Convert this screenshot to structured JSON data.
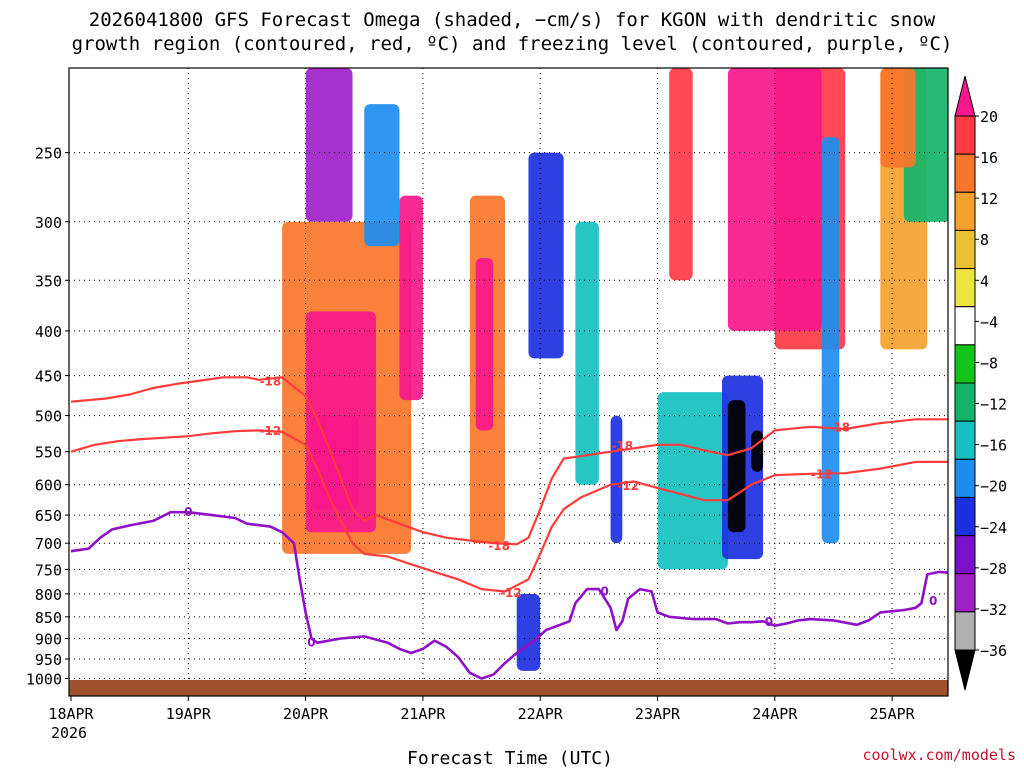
{
  "title": {
    "line1": "2026041800 GFS Forecast Omega (shaded, −cm/s) for KGON with dendritic snow",
    "line2": "growth region (contoured, red, ºC) and freezing level (contoured, purple, ºC)"
  },
  "credit": "coolwx.com/models",
  "chart_data": {
    "type": "heatmap",
    "title": "2026041800 GFS Forecast Omega (shaded, −cm/s) for KGON with dendritic snow growth region (contoured, red, ºC) and freezing level (contoured, purple, ºC)",
    "xlabel": "Forecast Time (UTC)",
    "ylabel": "",
    "x_ticks": [
      "18APR",
      "19APR",
      "20APR",
      "21APR",
      "22APR",
      "23APR",
      "24APR",
      "25APR"
    ],
    "x_first_sub": "2026",
    "x_range_days": [
      0,
      7.5
    ],
    "y_ticks": [
      250,
      300,
      350,
      400,
      450,
      500,
      550,
      600,
      650,
      700,
      750,
      800,
      850,
      900,
      950,
      1000
    ],
    "y_range_hpa": [
      1020,
      200
    ],
    "y_scale": "log-pressure",
    "grid": true,
    "colorbar": {
      "levels": [
        20,
        16,
        12,
        8,
        4,
        -4,
        -8,
        -12,
        -16,
        -20,
        -24,
        -28,
        -32,
        -36
      ],
      "label_text": [
        "20",
        "16",
        "12",
        "8",
        "4",
        "−4",
        "−8",
        "−12",
        "−16",
        "−20",
        "−24",
        "−28",
        "−32",
        "−36"
      ],
      "colors": [
        "#f7178c",
        "#ff3b46",
        "#f8762a",
        "#f3a12c",
        "#e8c232",
        "#ece440",
        "#ffffff",
        "#10c418",
        "#12b46a",
        "#16c0c0",
        "#1c8ef0",
        "#1c30e0",
        "#7a10c8",
        "#a020c8",
        "#b0b0b0",
        "#000000"
      ]
    },
    "red_contours": [
      {
        "name": "-18",
        "points": [
          [
            0,
            482
          ],
          [
            0.3,
            478
          ],
          [
            0.5,
            473
          ],
          [
            0.7,
            465
          ],
          [
            0.9,
            460
          ],
          [
            1.1,
            456
          ],
          [
            1.3,
            452
          ],
          [
            1.5,
            452
          ],
          [
            1.6,
            455
          ],
          [
            1.8,
            452
          ],
          [
            2.0,
            475
          ],
          [
            2.1,
            505
          ],
          [
            2.2,
            545
          ],
          [
            2.3,
            590
          ],
          [
            2.4,
            640
          ],
          [
            2.5,
            660
          ],
          [
            2.6,
            650
          ],
          [
            2.8,
            665
          ],
          [
            3.0,
            680
          ],
          [
            3.2,
            690
          ],
          [
            3.4,
            695
          ],
          [
            3.6,
            700
          ],
          [
            3.8,
            702
          ],
          [
            3.9,
            690
          ],
          [
            4.0,
            640
          ],
          [
            4.1,
            590
          ],
          [
            4.2,
            560
          ],
          [
            4.4,
            555
          ],
          [
            4.6,
            550
          ],
          [
            4.8,
            545
          ],
          [
            5.0,
            540
          ],
          [
            5.2,
            540
          ],
          [
            5.4,
            548
          ],
          [
            5.6,
            555
          ],
          [
            5.8,
            545
          ],
          [
            6.0,
            520
          ],
          [
            6.3,
            515
          ],
          [
            6.6,
            518
          ],
          [
            6.9,
            510
          ],
          [
            7.2,
            505
          ],
          [
            7.5,
            505
          ]
        ],
        "labels": [
          {
            "text": "-18",
            "at": [
              1.7,
              457
            ]
          },
          {
            "text": "-18",
            "at": [
              3.65,
              705
            ]
          },
          {
            "text": "-18",
            "at": [
              4.7,
              542
            ]
          },
          {
            "text": "-18",
            "at": [
              6.55,
              516
            ]
          }
        ]
      },
      {
        "name": "-12",
        "points": [
          [
            0,
            550
          ],
          [
            0.2,
            540
          ],
          [
            0.4,
            535
          ],
          [
            0.6,
            532
          ],
          [
            0.8,
            530
          ],
          [
            1.0,
            528
          ],
          [
            1.2,
            524
          ],
          [
            1.4,
            521
          ],
          [
            1.6,
            520
          ],
          [
            1.8,
            522
          ],
          [
            2.0,
            540
          ],
          [
            2.1,
            575
          ],
          [
            2.2,
            620
          ],
          [
            2.3,
            660
          ],
          [
            2.4,
            700
          ],
          [
            2.5,
            720
          ],
          [
            2.7,
            725
          ],
          [
            2.9,
            740
          ],
          [
            3.1,
            755
          ],
          [
            3.3,
            770
          ],
          [
            3.5,
            790
          ],
          [
            3.7,
            795
          ],
          [
            3.9,
            770
          ],
          [
            4.0,
            720
          ],
          [
            4.1,
            670
          ],
          [
            4.2,
            640
          ],
          [
            4.35,
            620
          ],
          [
            4.6,
            600
          ],
          [
            4.8,
            595
          ],
          [
            5.0,
            605
          ],
          [
            5.2,
            615
          ],
          [
            5.4,
            625
          ],
          [
            5.6,
            625
          ],
          [
            5.8,
            600
          ],
          [
            6.0,
            585
          ],
          [
            6.3,
            583
          ],
          [
            6.6,
            582
          ],
          [
            6.9,
            575
          ],
          [
            7.2,
            565
          ],
          [
            7.5,
            565
          ]
        ],
        "labels": [
          {
            "text": "-12",
            "at": [
              1.7,
              521
            ]
          },
          {
            "text": "-12",
            "at": [
              3.75,
              798
            ]
          },
          {
            "text": "-12",
            "at": [
              4.75,
              602
            ]
          },
          {
            "text": "-12",
            "at": [
              6.4,
              584
            ]
          }
        ]
      }
    ],
    "purple_contours": [
      {
        "name": "0",
        "points": [
          [
            0,
            715
          ],
          [
            0.15,
            710
          ],
          [
            0.25,
            690
          ],
          [
            0.35,
            675
          ],
          [
            0.5,
            668
          ],
          [
            0.7,
            660
          ],
          [
            0.85,
            645
          ],
          [
            1.0,
            645
          ],
          [
            1.2,
            650
          ],
          [
            1.4,
            655
          ],
          [
            1.5,
            665
          ],
          [
            1.7,
            670
          ],
          [
            1.8,
            680
          ],
          [
            1.9,
            700
          ],
          [
            1.95,
            770
          ],
          [
            2.0,
            840
          ],
          [
            2.05,
            900
          ],
          [
            2.1,
            910
          ],
          [
            2.3,
            900
          ],
          [
            2.5,
            895
          ],
          [
            2.7,
            910
          ],
          [
            2.8,
            925
          ],
          [
            2.9,
            935
          ],
          [
            3.0,
            925
          ],
          [
            3.1,
            905
          ],
          [
            3.2,
            920
          ],
          [
            3.3,
            945
          ],
          [
            3.4,
            985
          ],
          [
            3.5,
            1000
          ],
          [
            3.6,
            990
          ],
          [
            3.7,
            960
          ],
          [
            3.8,
            935
          ],
          [
            3.95,
            905
          ],
          [
            4.05,
            880
          ],
          [
            4.15,
            870
          ],
          [
            4.25,
            860
          ],
          [
            4.3,
            820
          ],
          [
            4.4,
            790
          ],
          [
            4.5,
            790
          ],
          [
            4.6,
            830
          ],
          [
            4.65,
            880
          ],
          [
            4.7,
            860
          ],
          [
            4.75,
            810
          ],
          [
            4.85,
            790
          ],
          [
            4.95,
            795
          ],
          [
            5.0,
            840
          ],
          [
            5.1,
            850
          ],
          [
            5.3,
            855
          ],
          [
            5.5,
            855
          ],
          [
            5.6,
            865
          ],
          [
            5.7,
            862
          ],
          [
            5.8,
            862
          ],
          [
            5.9,
            860
          ],
          [
            6.0,
            870
          ],
          [
            6.1,
            865
          ],
          [
            6.2,
            858
          ],
          [
            6.3,
            855
          ],
          [
            6.5,
            858
          ],
          [
            6.7,
            868
          ],
          [
            6.8,
            858
          ],
          [
            6.9,
            840
          ],
          [
            7.1,
            835
          ],
          [
            7.2,
            830
          ],
          [
            7.25,
            820
          ],
          [
            7.3,
            760
          ],
          [
            7.4,
            755
          ],
          [
            7.5,
            757
          ]
        ],
        "labels": [
          {
            "text": "0",
            "at": [
              1.0,
              645
            ]
          },
          {
            "text": "0",
            "at": [
              2.05,
              910
            ]
          },
          {
            "text": "0",
            "at": [
              4.55,
              795
            ]
          },
          {
            "text": "0",
            "at": [
              5.95,
              862
            ]
          },
          {
            "text": "0",
            "at": [
              7.35,
              815
            ]
          }
        ]
      }
    ],
    "omega_cells": [
      {
        "t0": 2.0,
        "t1": 2.6,
        "p0": 380,
        "p1": 680,
        "v": 20
      },
      {
        "t0": 2.05,
        "t1": 2.45,
        "p0": 500,
        "p1": 640,
        "v": 24
      },
      {
        "t0": 1.8,
        "t1": 2.9,
        "p0": 300,
        "p1": 720,
        "v": 12
      },
      {
        "t0": 2.8,
        "t1": 3.0,
        "p0": 280,
        "p1": 480,
        "v": 20
      },
      {
        "t0": 3.4,
        "t1": 3.7,
        "p0": 280,
        "p1": 700,
        "v": 12
      },
      {
        "t0": 3.45,
        "t1": 3.6,
        "p0": 330,
        "p1": 520,
        "v": 20
      },
      {
        "t0": 5.6,
        "t1": 6.4,
        "p0": 200,
        "p1": 400,
        "v": 24
      },
      {
        "t0": 6.0,
        "t1": 6.6,
        "p0": 200,
        "p1": 420,
        "v": 16
      },
      {
        "t0": 5.1,
        "t1": 5.3,
        "p0": 200,
        "p1": 350,
        "v": 16
      },
      {
        "t0": 6.9,
        "t1": 7.2,
        "p0": 200,
        "p1": 260,
        "v": 12
      },
      {
        "t0": 6.9,
        "t1": 7.3,
        "p0": 200,
        "p1": 420,
        "v": 8
      },
      {
        "t0": 2.0,
        "t1": 2.4,
        "p0": 200,
        "p1": 300,
        "v": -28
      },
      {
        "t0": 2.5,
        "t1": 2.8,
        "p0": 220,
        "p1": 320,
        "v": -16
      },
      {
        "t0": 3.9,
        "t1": 4.2,
        "p0": 250,
        "p1": 430,
        "v": -20
      },
      {
        "t0": 4.3,
        "t1": 4.5,
        "p0": 300,
        "p1": 600,
        "v": -12
      },
      {
        "t0": 5.0,
        "t1": 5.6,
        "p0": 470,
        "p1": 750,
        "v": -12
      },
      {
        "t0": 5.6,
        "t1": 5.75,
        "p0": 480,
        "p1": 680,
        "v": -36
      },
      {
        "t0": 5.8,
        "t1": 5.9,
        "p0": 520,
        "p1": 580,
        "v": -36
      },
      {
        "t0": 5.55,
        "t1": 5.9,
        "p0": 450,
        "p1": 730,
        "v": -20
      },
      {
        "t0": 6.4,
        "t1": 6.55,
        "p0": 240,
        "p1": 700,
        "v": -16
      },
      {
        "t0": 3.8,
        "t1": 4.0,
        "p0": 800,
        "p1": 980,
        "v": -20
      },
      {
        "t0": 4.6,
        "t1": 4.7,
        "p0": 500,
        "p1": 700,
        "v": -20
      },
      {
        "t0": 7.1,
        "t1": 7.5,
        "p0": 200,
        "p1": 300,
        "v": -8
      }
    ]
  }
}
